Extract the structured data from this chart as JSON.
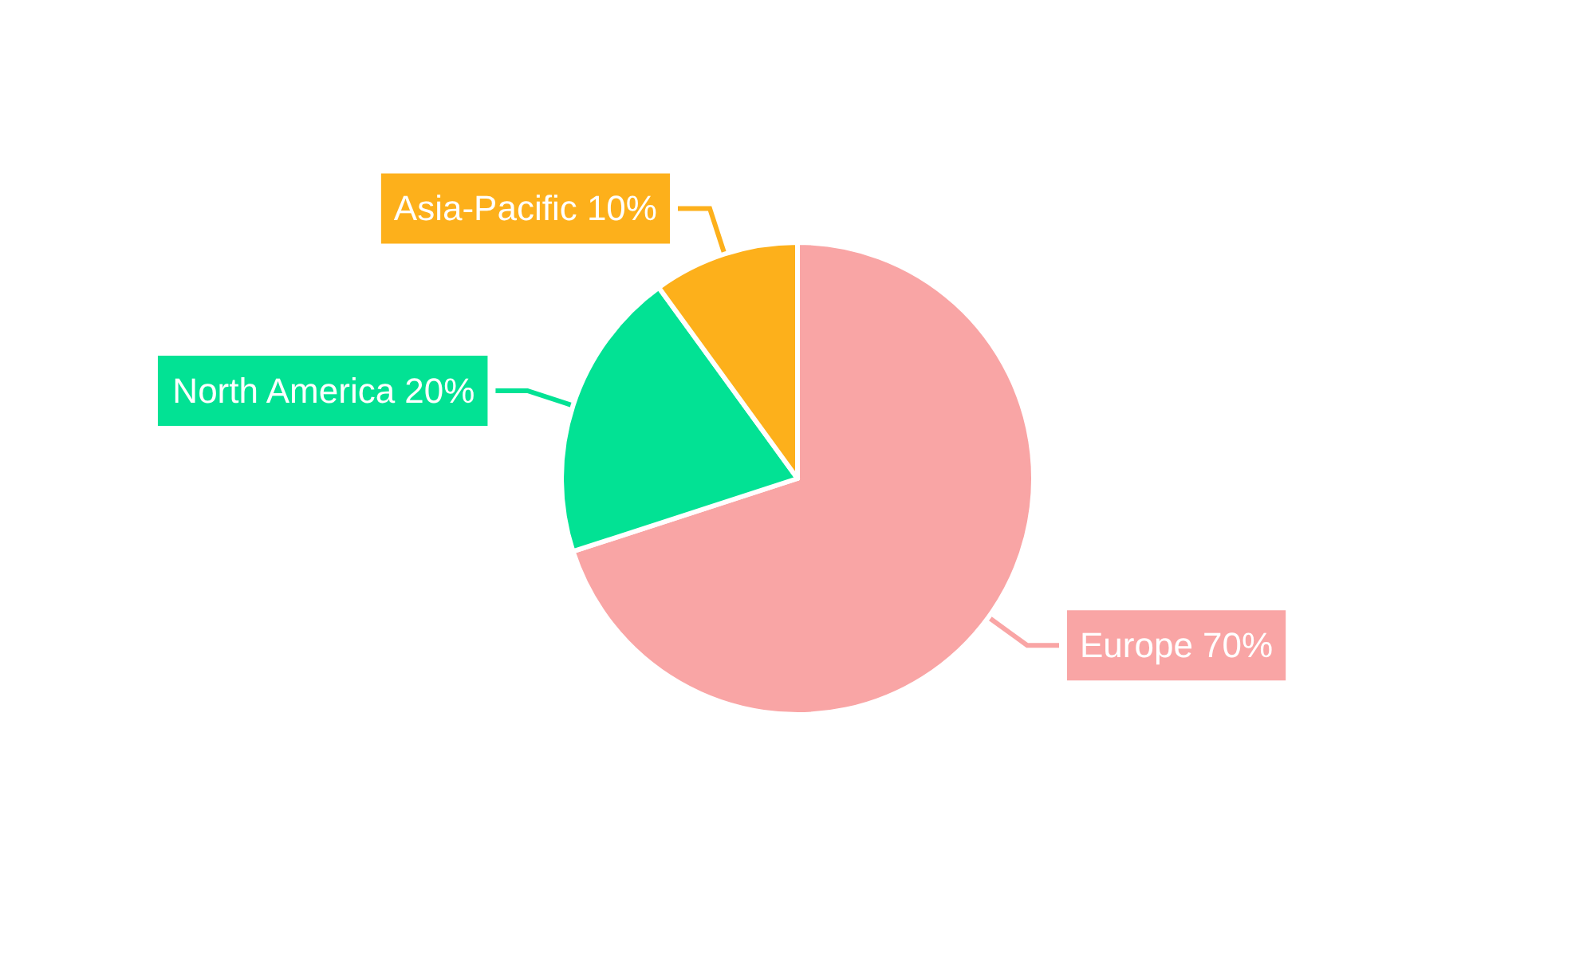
{
  "chart_data": {
    "type": "pie",
    "categories": [
      "Europe",
      "North America",
      "Asia-Pacific"
    ],
    "values": [
      70,
      20,
      10
    ],
    "value_labels": [
      "70%",
      "20%",
      "10%"
    ],
    "colors": [
      "#f9a5a5",
      "#02e294",
      "#fdb01b"
    ],
    "legend": false
  }
}
